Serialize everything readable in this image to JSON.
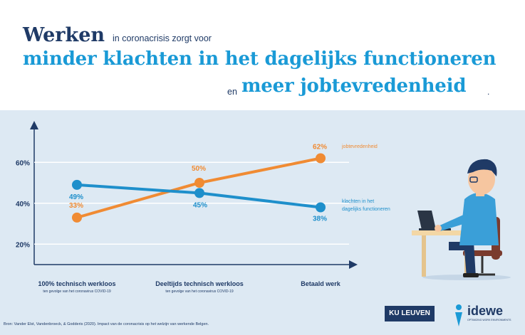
{
  "header": {
    "title_word": "Werken",
    "title_rest": "in coronacrisis zorgt voor",
    "line2": "minder klachten in het dagelijks functioneren",
    "connector": "en",
    "line3": "meer jobtevredenheid",
    "line3_end": "."
  },
  "source": "Bron: Vander Elst, Vandenbroeck, & Godderis (2020). Impact van de coronacrisis op het welzijn van werkende Belgen.",
  "logos": {
    "ku_leuven": "KU LEUVEN",
    "idewe": "idewe",
    "idewe_tagline": "OPTIMIZING WORK ENVIRONMENTS"
  },
  "chart_data": {
    "type": "line",
    "categories": [
      "100% technisch werkloos",
      "Deeltijds technisch werkloos",
      "Betaald werk"
    ],
    "category_subtitles": [
      "ten gevolge van het coronavirus COVID-19",
      "ten gevolge van het coronavirus COVID-19",
      ""
    ],
    "yticks": [
      "20%",
      "40%",
      "60%"
    ],
    "ylim": [
      10,
      70
    ],
    "series": [
      {
        "name": "jobtevredenheid",
        "values": [
          33,
          50,
          62
        ],
        "labels": [
          "33%",
          "50%",
          "62%"
        ],
        "color": "#f08b33"
      },
      {
        "name": "klachten in het dagelijks functioneren",
        "name_lines": [
          "klachten in het",
          "dagelijks functioneren"
        ],
        "values": [
          49,
          45,
          38
        ],
        "labels": [
          "49%",
          "45%",
          "38%"
        ],
        "color": "#1e8fcb"
      }
    ],
    "legend_placement": "right"
  }
}
